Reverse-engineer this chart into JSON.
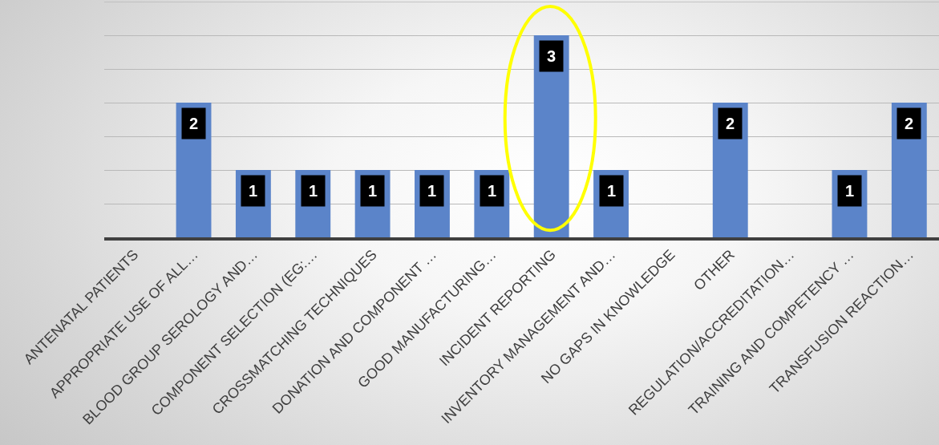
{
  "chart_data": {
    "type": "bar",
    "categories": [
      "ANTENATAL PATIENTS",
      "APPROPRIATE USE OF ALL…",
      "BLOOD GROUP SEROLOGY AND…",
      "COMPONENT SELECTION (EG:…",
      "CROSSMATCHING TECHNIQUES",
      "DONATION AND COMPONENT …",
      "GOOD MANUFACTURING…",
      "INCIDENT REPORTING",
      "INVENTORY MANAGEMENT AND…",
      "NO GAPS IN KNOWLEDGE",
      "OTHER",
      "REGULATION/ACCREDITATION…",
      "TRAINING AND COMPETENCY …",
      "TRANSFUSION REACTION…"
    ],
    "values": [
      0,
      2,
      1,
      1,
      1,
      1,
      1,
      3,
      1,
      0,
      2,
      0,
      1,
      2
    ],
    "value_labels": [
      null,
      "2",
      "1",
      "1",
      "1",
      "1",
      "1",
      "3",
      "1",
      null,
      "2",
      null,
      "1",
      "2"
    ],
    "color": "#5b84c9",
    "ylim": [
      0,
      3.5
    ],
    "yticks": [
      {
        "value": 0.5,
        "label": null
      },
      {
        "value": 1,
        "label": null
      },
      {
        "value": 1.5,
        "label": null
      },
      {
        "value": 2,
        "label": null
      },
      {
        "value": 2.5,
        "label": null
      },
      {
        "value": 3,
        "label": null
      }
    ],
    "grid": "y",
    "tick_labels": "x",
    "legend": false
  }
}
